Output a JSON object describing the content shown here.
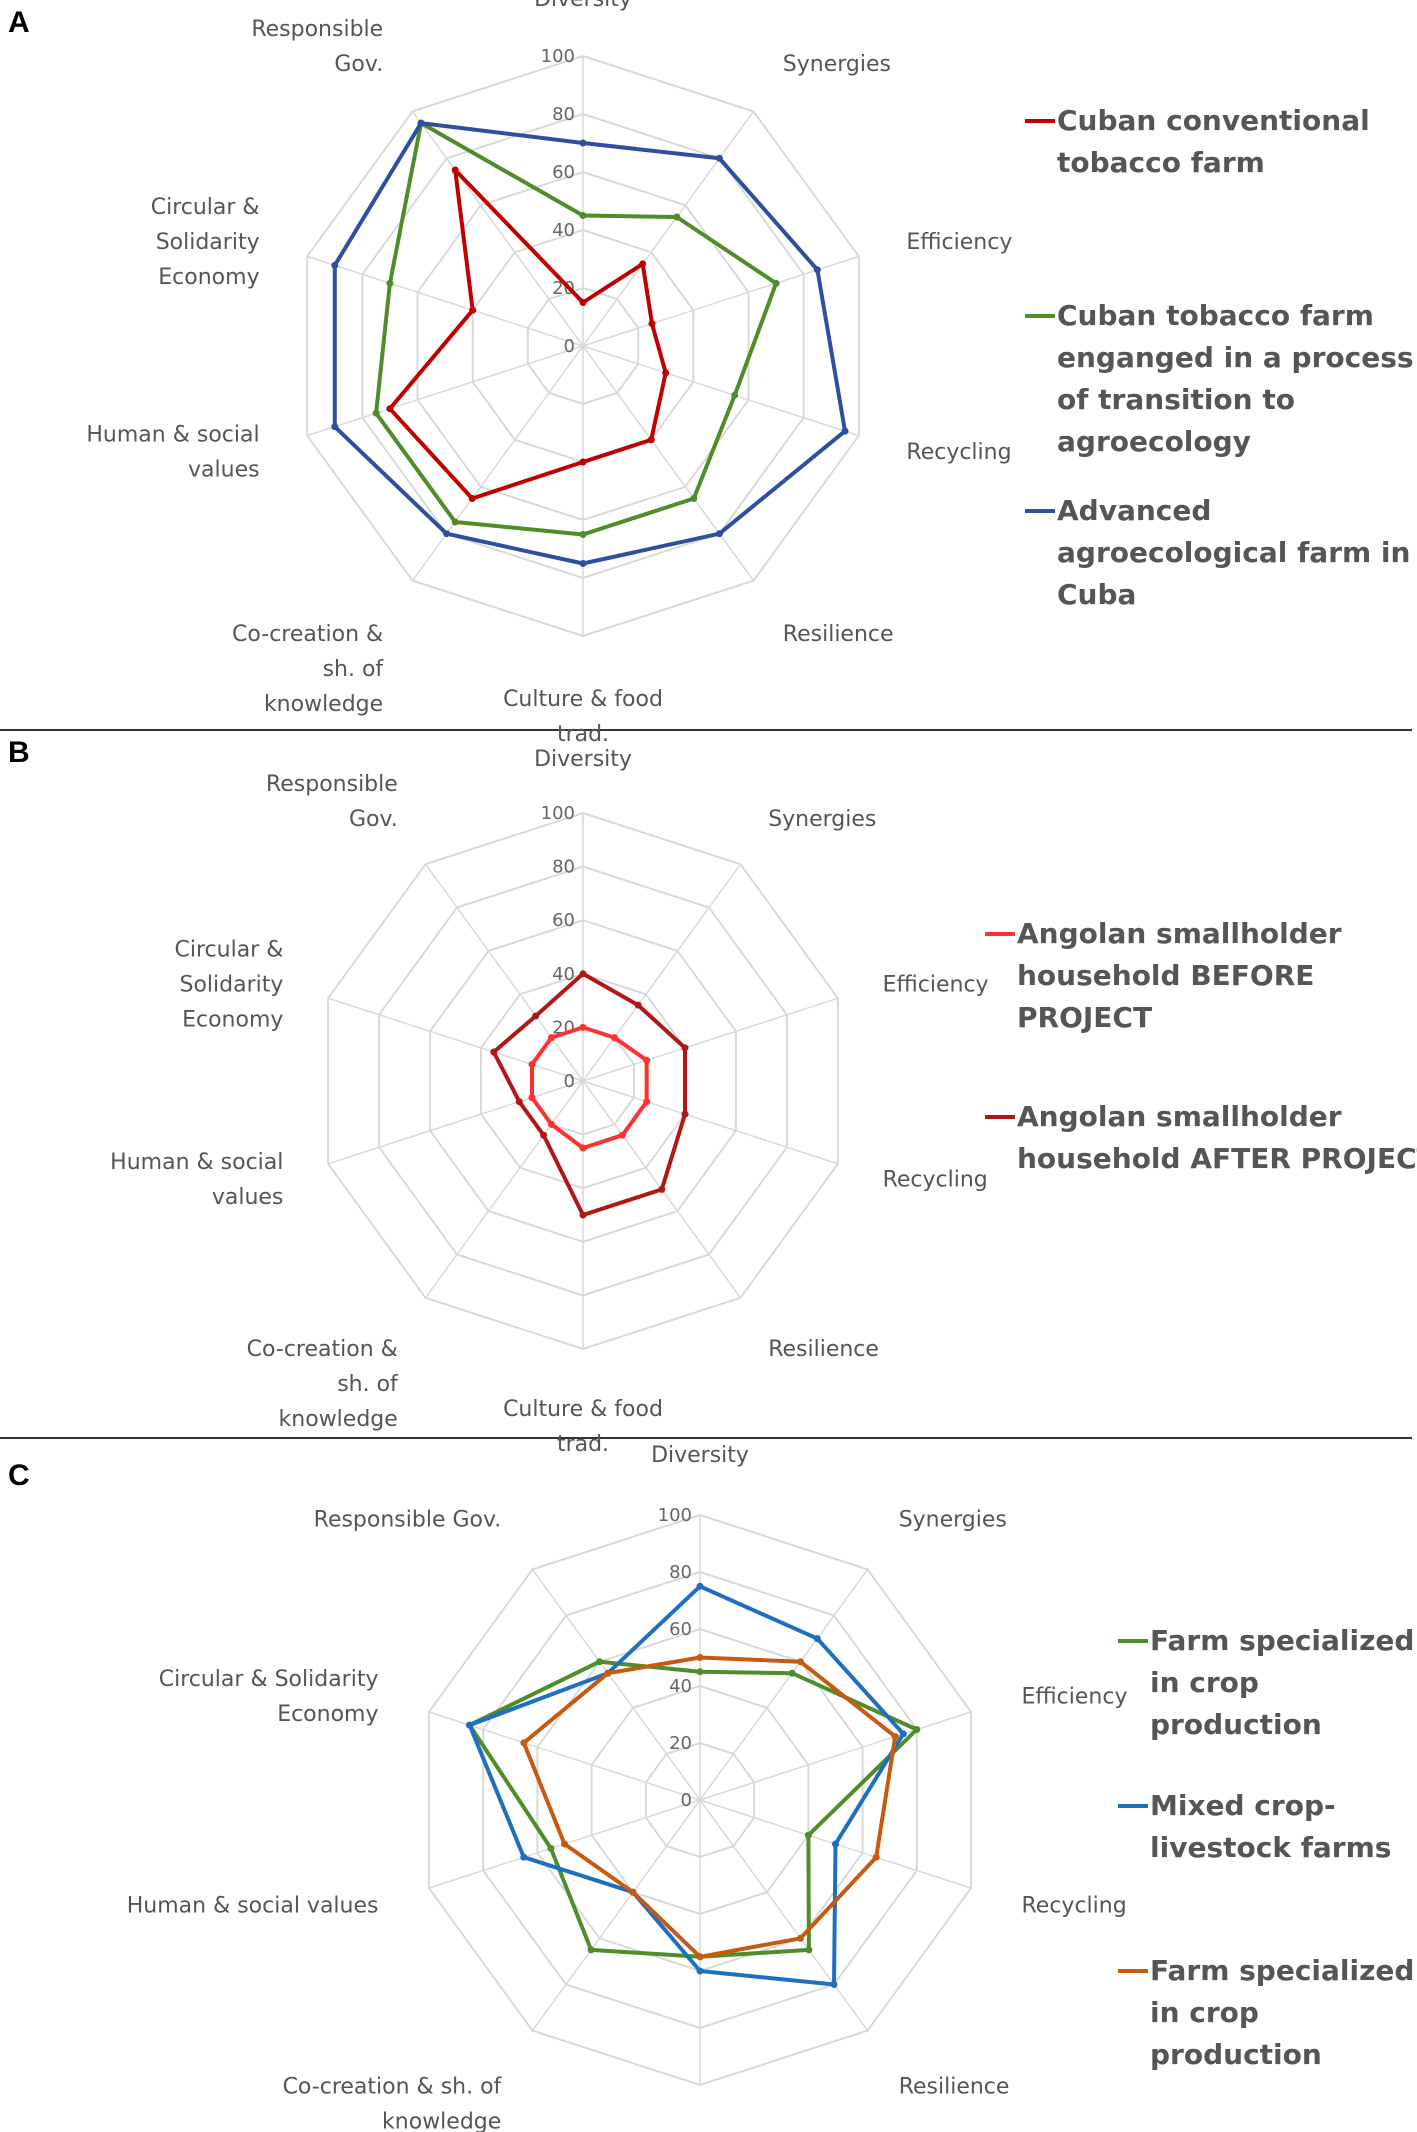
{
  "chart_data": [
    {
      "panel": "A",
      "type": "radar",
      "axes": [
        "Diversity",
        "Synergies",
        "Efficiency",
        "Recycling",
        "Resilience",
        "Culture & food trad.",
        "Co-creation & sh. of knowledge",
        "Human & social values",
        "Circular & Solidarity Economy",
        "Responsible Gov."
      ],
      "axis_label_lines": [
        [
          "Diversity"
        ],
        [
          "Synergies"
        ],
        [
          "Efficiency"
        ],
        [
          "Recycling"
        ],
        [
          "Resilience"
        ],
        [
          "Culture & food",
          "trad."
        ],
        [
          "Co-creation &",
          "sh. of",
          "knowledge"
        ],
        [
          "Human & social",
          "values"
        ],
        [
          "Circular &",
          "Solidarity",
          "Economy"
        ],
        [
          "Responsible",
          "Gov."
        ]
      ],
      "ticks": [
        "0",
        "20",
        "40",
        "60",
        "80",
        "100"
      ],
      "range": [
        0,
        100
      ],
      "grid": true,
      "legend_position": "right",
      "series": [
        {
          "name": "Cuban conventional tobacco farm",
          "legend_lines": [
            "Cuban conventional",
            "tobacco farm"
          ],
          "color": "#c00000",
          "values": [
            15,
            35,
            25,
            30,
            40,
            40,
            65,
            70,
            40,
            75
          ]
        },
        {
          "name": "Cuban tobacco farm enganged in a process of transition to agroecology",
          "legend_lines": [
            "Cuban tobacco farm",
            "enganged in a process",
            "of transition to",
            "agroecology"
          ],
          "color": "#4f8c2a",
          "values": [
            45,
            55,
            70,
            55,
            65,
            65,
            75,
            75,
            70,
            95
          ]
        },
        {
          "name": "Advanced agroecological farm in Cuba",
          "legend_lines": [
            "Advanced",
            "agroecological farm in",
            "Cuba"
          ],
          "color": "#2e4f9e",
          "values": [
            70,
            80,
            85,
            95,
            80,
            75,
            80,
            90,
            90,
            95
          ]
        }
      ]
    },
    {
      "panel": "B",
      "type": "radar",
      "axes": [
        "Diversity",
        "Synergies",
        "Efficiency",
        "Recycling",
        "Resilience",
        "Culture & food trad.",
        "Co-creation & sh. of knowledge",
        "Human & social values",
        "Circular & Solidarity Economy",
        "Responsible Gov."
      ],
      "axis_label_lines": [
        [
          "Diversity"
        ],
        [
          "Synergies"
        ],
        [
          "Efficiency"
        ],
        [
          "Recycling"
        ],
        [
          "Resilience"
        ],
        [
          "Culture & food",
          "trad."
        ],
        [
          "Co-creation &",
          "sh. of",
          "knowledge"
        ],
        [
          "Human & social",
          "values"
        ],
        [
          "Circular &",
          "Solidarity",
          "Economy"
        ],
        [
          "Responsible",
          "Gov."
        ]
      ],
      "ticks": [
        "0",
        "20",
        "40",
        "60",
        "80",
        "100"
      ],
      "range": [
        0,
        100
      ],
      "grid": true,
      "legend_position": "right",
      "series": [
        {
          "name": "Angolan smallholder household BEFORE PROJECT",
          "legend_lines": [
            "Angolan smallholder",
            "household BEFORE",
            "PROJECT"
          ],
          "color": "#ff3030",
          "values": [
            20,
            20,
            25,
            25,
            25,
            25,
            20,
            20,
            20,
            20
          ]
        },
        {
          "name": "Angolan smallholder household AFTER PROJECT",
          "legend_lines": [
            "Angolan smallholder",
            "household AFTER PROJECT"
          ],
          "color": "#b01818",
          "values": [
            40,
            35,
            40,
            40,
            50,
            50,
            25,
            25,
            35,
            30
          ]
        }
      ]
    },
    {
      "panel": "C",
      "type": "radar",
      "axes": [
        "Diversity",
        "Synergies",
        "Efficiency",
        "Recycling",
        "Resilience",
        "Culture & food trad.",
        "Co-creation & sh. of knowledge",
        "Human & social values",
        "Circular & Solidarity Economy",
        "Responsible Gov."
      ],
      "axis_label_lines": [
        [
          "Diversity"
        ],
        [
          "Synergies"
        ],
        [
          "Efficiency"
        ],
        [
          "Recycling"
        ],
        [
          "Resilience"
        ],
        [
          "Culture & food trad."
        ],
        [
          "Co-creation & sh. of",
          "knowledge"
        ],
        [
          "Human & social values"
        ],
        [
          "Circular & Solidarity",
          "Economy"
        ],
        [
          "Responsible Gov."
        ]
      ],
      "ticks": [
        "0",
        "20",
        "40",
        "60",
        "80",
        "100"
      ],
      "range": [
        0,
        100
      ],
      "grid": true,
      "legend_position": "right",
      "series": [
        {
          "name": "Farm specialized in crop production",
          "legend_lines": [
            "Farm specialized",
            "in crop",
            "production"
          ],
          "color": "#4f8c2a",
          "values": [
            45,
            55,
            80,
            40,
            65,
            55,
            65,
            55,
            85,
            60
          ]
        },
        {
          "name": "Mixed crop-livestock farms",
          "legend_lines": [
            "Mixed crop-",
            "livestock farms"
          ],
          "color": "#1f6fc0",
          "values": [
            75,
            70,
            75,
            50,
            80,
            60,
            40,
            65,
            85,
            55
          ]
        },
        {
          "name": "Farm specialized in crop production",
          "legend_lines": [
            "Farm specialized",
            "in crop",
            "production"
          ],
          "color": "#c55a11",
          "values": [
            50,
            60,
            72,
            65,
            60,
            55,
            40,
            50,
            65,
            55
          ]
        }
      ]
    }
  ]
}
